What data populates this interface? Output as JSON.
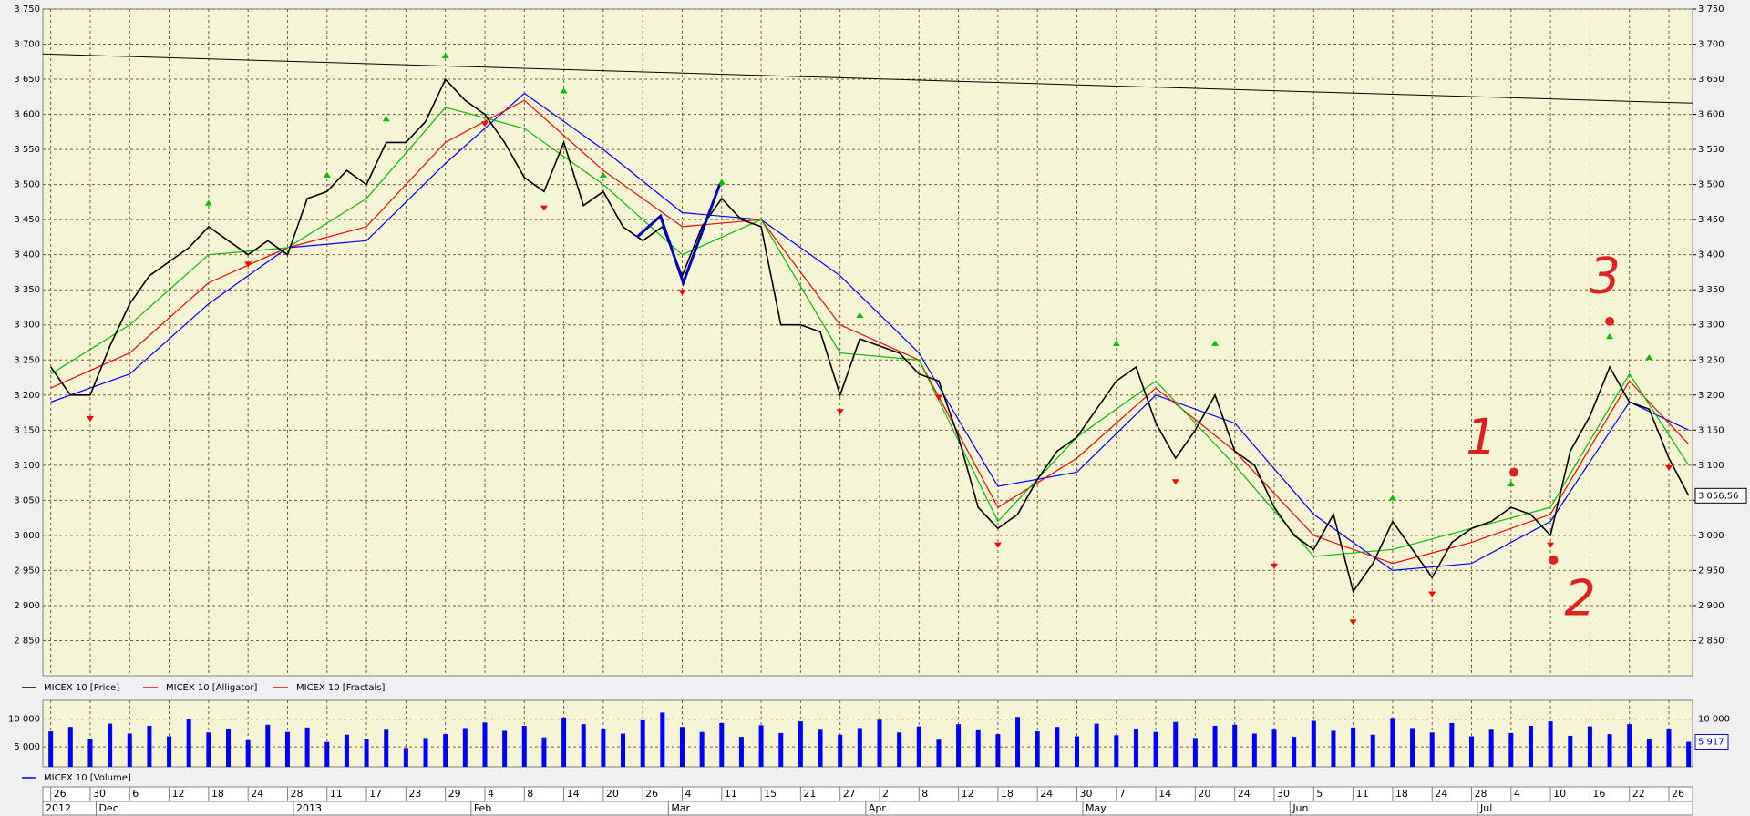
{
  "chart_data": [
    {
      "type": "line",
      "xlim": [
        -0.8,
        166.4
      ],
      "ylim": [
        2800,
        3750
      ],
      "yticks": [
        {
          "value": 2850,
          "label": "2 850"
        },
        {
          "value": 2900,
          "label": "2 900"
        },
        {
          "value": 2950,
          "label": "2 950"
        },
        {
          "value": 3000,
          "label": "3 000"
        },
        {
          "value": 3050,
          "label": "3 050"
        },
        {
          "value": 3100,
          "label": "3 100"
        },
        {
          "value": 3150,
          "label": "3 150"
        },
        {
          "value": 3200,
          "label": "3 200"
        },
        {
          "value": 3250,
          "label": "3 250"
        },
        {
          "value": 3300,
          "label": "3 300"
        },
        {
          "value": 3350,
          "label": "3 350"
        },
        {
          "value": 3400,
          "label": "3 400"
        },
        {
          "value": 3450,
          "label": "3 450"
        },
        {
          "value": 3500,
          "label": "3 500"
        },
        {
          "value": 3550,
          "label": "3 550"
        },
        {
          "value": 3600,
          "label": "3 600"
        },
        {
          "value": 3650,
          "label": "3 650"
        },
        {
          "value": 3700,
          "label": "3 700"
        },
        {
          "value": 3750,
          "label": "3 750"
        }
      ],
      "grid": true,
      "xticks": [
        {
          "value": 0,
          "label": "26"
        },
        {
          "value": 4,
          "label": "30"
        },
        {
          "value": 8,
          "label": "6"
        },
        {
          "value": 12,
          "label": "12"
        },
        {
          "value": 16,
          "label": "18"
        },
        {
          "value": 20,
          "label": "24"
        },
        {
          "value": 24,
          "label": "28"
        },
        {
          "value": 28,
          "label": "11"
        },
        {
          "value": 32,
          "label": "17"
        },
        {
          "value": 36,
          "label": "23"
        },
        {
          "value": 40,
          "label": "29"
        },
        {
          "value": 44,
          "label": "4"
        },
        {
          "value": 48,
          "label": "8"
        },
        {
          "value": 52,
          "label": "14"
        },
        {
          "value": 56,
          "label": "20"
        },
        {
          "value": 60,
          "label": "26"
        },
        {
          "value": 64,
          "label": "4"
        },
        {
          "value": 68,
          "label": "11"
        },
        {
          "value": 72,
          "label": "15"
        },
        {
          "value": 76,
          "label": "21"
        },
        {
          "value": 80,
          "label": "27"
        },
        {
          "value": 84,
          "label": "2"
        },
        {
          "value": 88,
          "label": "8"
        },
        {
          "value": 92,
          "label": "12"
        },
        {
          "value": 96,
          "label": "18"
        },
        {
          "value": 100,
          "label": "24"
        },
        {
          "value": 104,
          "label": "30"
        },
        {
          "value": 108,
          "label": "7"
        },
        {
          "value": 112,
          "label": "14"
        },
        {
          "value": 116,
          "label": "20"
        },
        {
          "value": 120,
          "label": "24"
        },
        {
          "value": 124,
          "label": "30"
        },
        {
          "value": 128,
          "label": "5"
        },
        {
          "value": 132,
          "label": "11"
        },
        {
          "value": 136,
          "label": "18"
        },
        {
          "value": 140,
          "label": "24"
        },
        {
          "value": 144,
          "label": "28"
        },
        {
          "value": 148,
          "label": "4"
        },
        {
          "value": 152,
          "label": "10"
        },
        {
          "value": 156,
          "label": "16"
        },
        {
          "value": 160,
          "label": "22"
        },
        {
          "value": 164,
          "label": "26"
        }
      ],
      "month_ticks": [
        {
          "value": -0.8,
          "label": "2012"
        },
        {
          "value": 4.6,
          "label": "Dec"
        },
        {
          "value": 24.6,
          "label": "2013"
        },
        {
          "value": 42.6,
          "label": "Feb"
        },
        {
          "value": 62.6,
          "label": "Mar"
        },
        {
          "value": 82.6,
          "label": "Apr"
        },
        {
          "value": 104.6,
          "label": "May"
        },
        {
          "value": 125.6,
          "label": "Jun"
        },
        {
          "value": 144.6,
          "label": "Jul"
        }
      ],
      "series": [
        {
          "name": "MICEX 10 [Price]",
          "color": "#000000",
          "x": [
            0,
            2,
            4,
            6,
            8,
            10,
            12,
            14,
            16,
            18,
            20,
            22,
            24,
            26,
            28,
            30,
            32,
            34,
            36,
            38,
            40,
            42,
            44,
            46,
            48,
            50,
            52,
            54,
            56,
            58,
            60,
            62,
            64,
            66,
            68,
            70,
            72,
            74,
            76,
            78,
            80,
            82,
            84,
            86,
            88,
            90,
            92,
            94,
            96,
            98,
            100,
            102,
            104,
            106,
            108,
            110,
            112,
            114,
            116,
            118,
            120,
            122,
            124,
            126,
            128,
            130,
            132,
            134,
            136,
            138,
            140,
            142,
            144,
            146,
            148,
            150,
            152,
            154,
            156,
            158,
            160,
            162,
            164,
            166
          ],
          "values": [
            3240,
            3200,
            3200,
            3270,
            3330,
            3370,
            3390,
            3410,
            3440,
            3420,
            3400,
            3420,
            3400,
            3480,
            3490,
            3520,
            3500,
            3560,
            3560,
            3590,
            3650,
            3620,
            3600,
            3560,
            3510,
            3490,
            3560,
            3470,
            3490,
            3440,
            3420,
            3440,
            3370,
            3440,
            3480,
            3450,
            3440,
            3300,
            3300,
            3290,
            3200,
            3280,
            3270,
            3260,
            3230,
            3220,
            3140,
            3040,
            3010,
            3030,
            3080,
            3120,
            3140,
            3180,
            3220,
            3240,
            3160,
            3110,
            3150,
            3200,
            3120,
            3100,
            3040,
            3000,
            2980,
            3030,
            2920,
            2960,
            3020,
            2980,
            2940,
            2990,
            3010,
            3020,
            3040,
            3030,
            3000,
            3120,
            3170,
            3240,
            3190,
            3180,
            3110,
            3056.56
          ]
        },
        {
          "name": "MICEX 10 [Alligator]",
          "color": "#ff0000",
          "x": [
            0,
            8,
            16,
            24,
            32,
            40,
            48,
            56,
            64,
            72,
            80,
            88,
            96,
            104,
            112,
            120,
            128,
            136,
            144,
            152,
            160,
            166
          ],
          "lines": [
            {
              "color": "#0000ff",
              "values": [
                3190,
                3230,
                3330,
                3410,
                3420,
                3530,
                3630,
                3550,
                3460,
                3450,
                3370,
                3260,
                3070,
                3090,
                3200,
                3160,
                3030,
                2950,
                2960,
                3020,
                3190,
                3150
              ]
            },
            {
              "color": "#ff0000",
              "values": [
                3210,
                3260,
                3360,
                3410,
                3440,
                3560,
                3620,
                3520,
                3440,
                3450,
                3300,
                3250,
                3040,
                3110,
                3210,
                3120,
                3000,
                2960,
                2990,
                3030,
                3220,
                3130
              ]
            },
            {
              "color": "#00c000",
              "values": [
                3230,
                3300,
                3400,
                3410,
                3480,
                3610,
                3580,
                3500,
                3400,
                3450,
                3260,
                3250,
                3020,
                3140,
                3220,
                3100,
                2970,
                2980,
                3010,
                3040,
                3230,
                3100
              ]
            }
          ]
        },
        {
          "name": "MICEX 10 [Fractals]",
          "color": "#ff0000",
          "up": {
            "color": "#00c000",
            "x": [
              16,
              28,
              34,
              40,
              52,
              56,
              68,
              82,
              108,
              118,
              136,
              148,
              158,
              162
            ],
            "values": [
              3470,
              3510,
              3590,
              3680,
              3630,
              3510,
              3500,
              3310,
              3270,
              3270,
              3050,
              3070,
              3280,
              3250
            ]
          },
          "down": {
            "color": "#ff0000",
            "x": [
              4,
              20,
              44,
              50,
              64,
              80,
              90,
              96,
              114,
              124,
              132,
              140,
              152,
              164
            ],
            "values": [
              3170,
              3390,
              3590,
              3470,
              3350,
              3180,
              3200,
              2990,
              3080,
              2960,
              2880,
              2920,
              2990,
              3100
            ]
          }
        }
      ],
      "trendline": {
        "color": "#000000",
        "x": [
          -0.8,
          166.4
        ],
        "values": [
          3686,
          3616
        ]
      },
      "zigzag": {
        "color": "#0000c0",
        "x": [
          59.4,
          61.8,
          64.1,
          67.8
        ],
        "values": [
          3425,
          3455,
          3360,
          3500
        ]
      },
      "annotations": [
        {
          "text": "1",
          "color": "#e02020",
          "x": 145,
          "y": 3135,
          "dot": {
            "x": 148.3,
            "y": 3090
          }
        },
        {
          "text": "2",
          "color": "#e02020",
          "x": 155,
          "y": 2905,
          "dot": {
            "x": 152.3,
            "y": 2965
          }
        },
        {
          "text": "3",
          "color": "#e02020",
          "x": 157.5,
          "y": 3365,
          "dot": {
            "x": 158,
            "y": 3305
          }
        }
      ],
      "last_price": {
        "value": 3056.56,
        "label": "3 056,56"
      }
    },
    {
      "type": "bar",
      "ylim": [
        1400,
        13400
      ],
      "yticks": [
        {
          "value": 5000,
          "label": "5 000"
        },
        {
          "value": 10000,
          "label": "10 000"
        }
      ],
      "series": [
        {
          "name": "MICEX 10 [Volume]",
          "color": "#0000ff",
          "values": [
            7800,
            8600,
            6500,
            9200,
            7400,
            8800,
            6900,
            10100,
            7600,
            8300,
            6200,
            9000,
            7700,
            8500,
            5900,
            7200,
            6400,
            8100,
            4800,
            6600,
            7300,
            8400,
            9400,
            7900,
            8800,
            6700,
            10300,
            9100,
            8200,
            7400,
            9800,
            11200,
            8600,
            7700,
            9300,
            6800,
            8900,
            7500,
            9600,
            8100,
            7200,
            8400,
            9900,
            7600,
            8700,
            6300,
            9100,
            8000,
            7300,
            10400,
            7800,
            8600,
            6900,
            9200,
            7100,
            8300,
            7700,
            9500,
            6600,
            8800,
            9000,
            7400,
            8100,
            6800,
            9700,
            7900,
            8500,
            7200,
            10200,
            8400,
            7600,
            9300,
            6900,
            8100,
            7500,
            8800,
            9600,
            7000,
            8700,
            7300,
            9100,
            6500,
            8200,
            5917
          ]
        }
      ],
      "last_volume": {
        "value": 5917,
        "label": "5 917"
      }
    }
  ]
}
